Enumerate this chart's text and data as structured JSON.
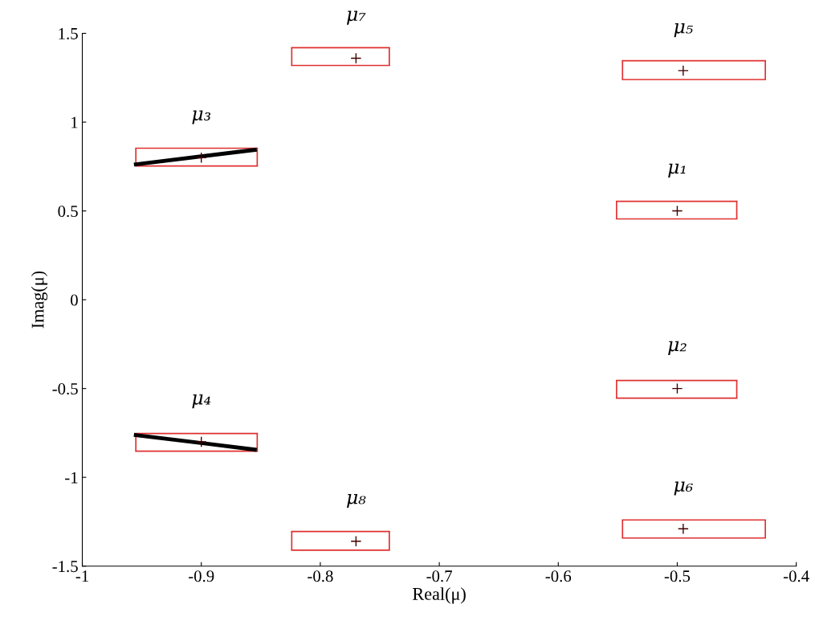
{
  "chart_data": {
    "type": "scatter",
    "xlabel": "Real(μ)",
    "ylabel": "Imag(μ)",
    "xlim": [
      -1,
      -0.4
    ],
    "ylim": [
      -1.5,
      1.5
    ],
    "xticks": [
      -1,
      -0.9,
      -0.8,
      -0.7,
      -0.6,
      -0.5,
      -0.4
    ],
    "yticks": [
      -1.5,
      -1,
      -0.5,
      0,
      0.5,
      1,
      1.5
    ],
    "grid": false,
    "legend": false,
    "marker": "none",
    "series": [
      {
        "type": "line",
        "color": "#e03030",
        "x": [
          -0.551,
          -0.45
        ],
        "values": [
          0.554,
          0.554
        ]
      },
      {
        "type": "line",
        "color": "#e03030",
        "x": [
          -0.551,
          -0.45
        ],
        "values": [
          0.455,
          0.455
        ]
      },
      {
        "type": "line",
        "color": "#e03030",
        "x": [
          -0.551,
          -0.45
        ],
        "values": [
          -0.455,
          -0.455
        ]
      },
      {
        "type": "line",
        "color": "#e03030",
        "x": [
          -0.551,
          -0.45
        ],
        "values": [
          -0.554,
          -0.554
        ]
      },
      {
        "type": "line",
        "color": "#e03030",
        "x": [
          -0.955,
          -0.853
        ],
        "values": [
          0.853,
          0.853
        ]
      },
      {
        "type": "line",
        "color": "#e03030",
        "x": [
          -0.955,
          -0.853
        ],
        "values": [
          0.753,
          0.753
        ]
      },
      {
        "type": "line",
        "color": "#e03030",
        "x": [
          -0.955,
          -0.853
        ],
        "values": [
          -0.753,
          -0.753
        ]
      },
      {
        "type": "line",
        "color": "#e03030",
        "x": [
          -0.955,
          -0.853
        ],
        "values": [
          -0.853,
          -0.853
        ]
      },
      {
        "type": "line",
        "color": "#e03030",
        "x": [
          -0.546,
          -0.426
        ],
        "values": [
          1.346,
          1.346
        ]
      },
      {
        "type": "line",
        "color": "#e03030",
        "x": [
          -0.546,
          -0.426
        ],
        "values": [
          1.24,
          1.24
        ]
      },
      {
        "type": "line",
        "color": "#e03030",
        "x": [
          -0.546,
          -0.426
        ],
        "values": [
          -1.24,
          -1.24
        ]
      },
      {
        "type": "line",
        "color": "#e03030",
        "x": [
          -0.546,
          -0.426
        ],
        "values": [
          -1.342,
          -1.342
        ]
      },
      {
        "type": "line",
        "color": "#e03030",
        "x": [
          -0.824,
          -0.742
        ],
        "values": [
          1.419,
          1.419
        ]
      },
      {
        "type": "line",
        "color": "#e03030",
        "x": [
          -0.824,
          -0.742
        ],
        "values": [
          1.319,
          1.319
        ]
      },
      {
        "type": "line",
        "color": "#e03030",
        "x": [
          -0.824,
          -0.742
        ],
        "values": [
          -1.305,
          -1.305
        ]
      },
      {
        "type": "line",
        "color": "#e03030",
        "x": [
          -0.824,
          -0.742
        ],
        "values": [
          -1.41,
          -1.41
        ]
      },
      {
        "type": "line",
        "color": "#000000",
        "x": [
          -0.955,
          -0.855
        ],
        "values": [
          0.762,
          0.844
        ]
      },
      {
        "type": "line",
        "color": "#000000",
        "x": [
          -0.955,
          -0.855
        ],
        "values": [
          -0.762,
          -0.844
        ]
      },
      {
        "marker": "cross",
        "color": "#400000",
        "x": [
          -0.5,
          -0.5,
          -0.9,
          -0.9,
          -0.495,
          -0.495,
          -0.77,
          -0.77
        ],
        "values": [
          0.5,
          -0.5,
          0.8,
          -0.8,
          1.29,
          -1.29,
          1.36,
          -1.36
        ]
      }
    ],
    "annotations": [
      {
        "text": "μ₁",
        "x": -0.5,
        "y": 0.5
      },
      {
        "text": "μ₂",
        "x": -0.5,
        "y": -0.5
      },
      {
        "text": "μ₃",
        "x": -0.9,
        "y": 0.8
      },
      {
        "text": "μ₄",
        "x": -0.9,
        "y": -0.8
      },
      {
        "text": "μ₅",
        "x": -0.495,
        "y": 1.29
      },
      {
        "text": "μ₆",
        "x": -0.495,
        "y": -1.29
      },
      {
        "text": "μ₇",
        "x": -0.77,
        "y": 1.36
      },
      {
        "text": "μ₈",
        "x": -0.77,
        "y": -1.36
      }
    ]
  }
}
